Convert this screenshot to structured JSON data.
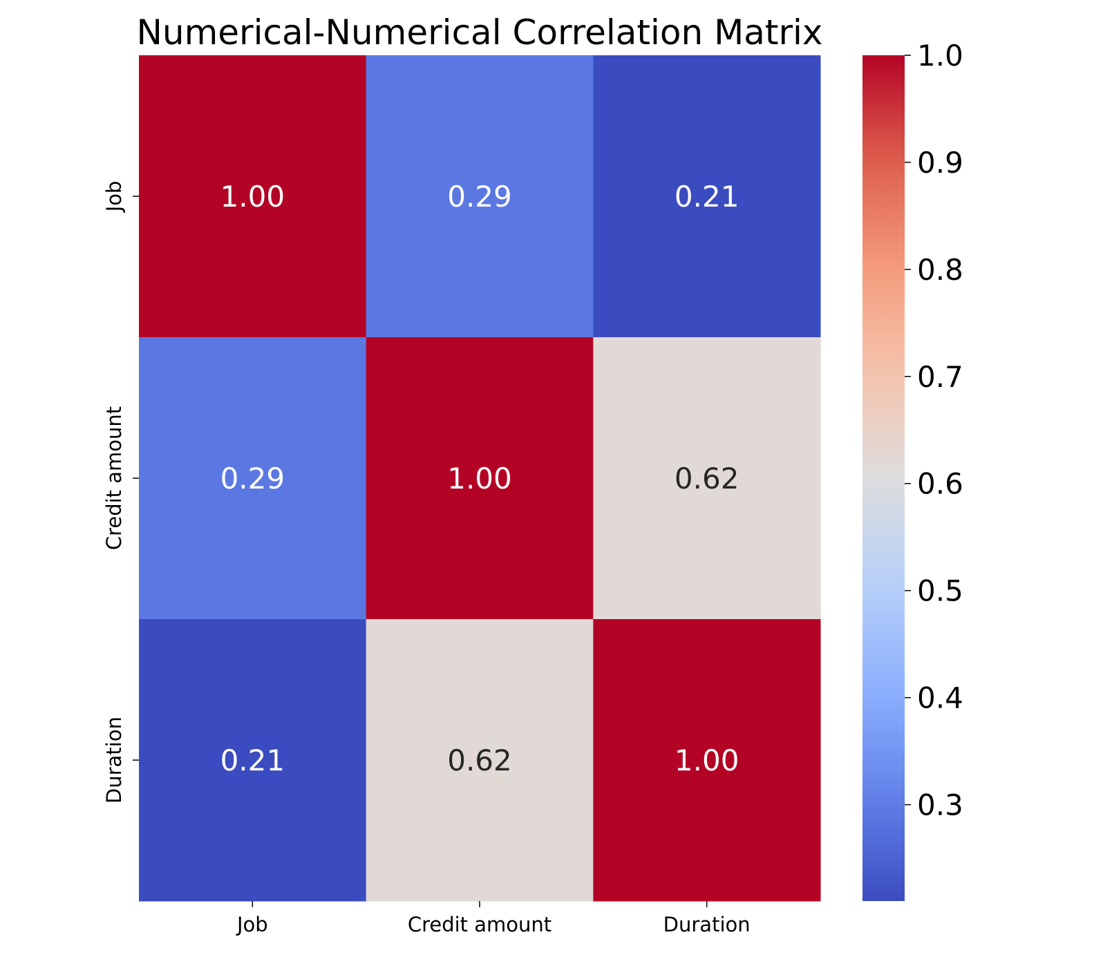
{
  "chart_data": {
    "type": "heatmap",
    "title": "Numerical-Numerical Correlation Matrix",
    "xlabel": "",
    "ylabel": "",
    "x_categories": [
      "Job",
      "Credit amount",
      "Duration"
    ],
    "y_categories": [
      "Job",
      "Credit amount",
      "Duration"
    ],
    "values": [
      [
        1.0,
        0.29,
        0.21
      ],
      [
        0.29,
        1.0,
        0.62
      ],
      [
        0.21,
        0.62,
        1.0
      ]
    ],
    "value_labels": [
      [
        "1.00",
        "0.29",
        "0.21"
      ],
      [
        "0.29",
        "1.00",
        "0.62"
      ],
      [
        "0.21",
        "0.62",
        "1.00"
      ]
    ],
    "colormap": "coolwarm",
    "colorbar": {
      "range": [
        0.21,
        1.0
      ],
      "ticks": [
        0.3,
        0.4,
        0.5,
        0.6,
        0.7,
        0.8,
        0.9,
        1.0
      ],
      "tick_labels": [
        "0.3",
        "0.4",
        "0.5",
        "0.6",
        "0.7",
        "0.8",
        "0.9",
        "1.0"
      ]
    },
    "annotation_colors": {
      "light": "#ffffff",
      "dark": "#262626"
    },
    "grid": false
  }
}
